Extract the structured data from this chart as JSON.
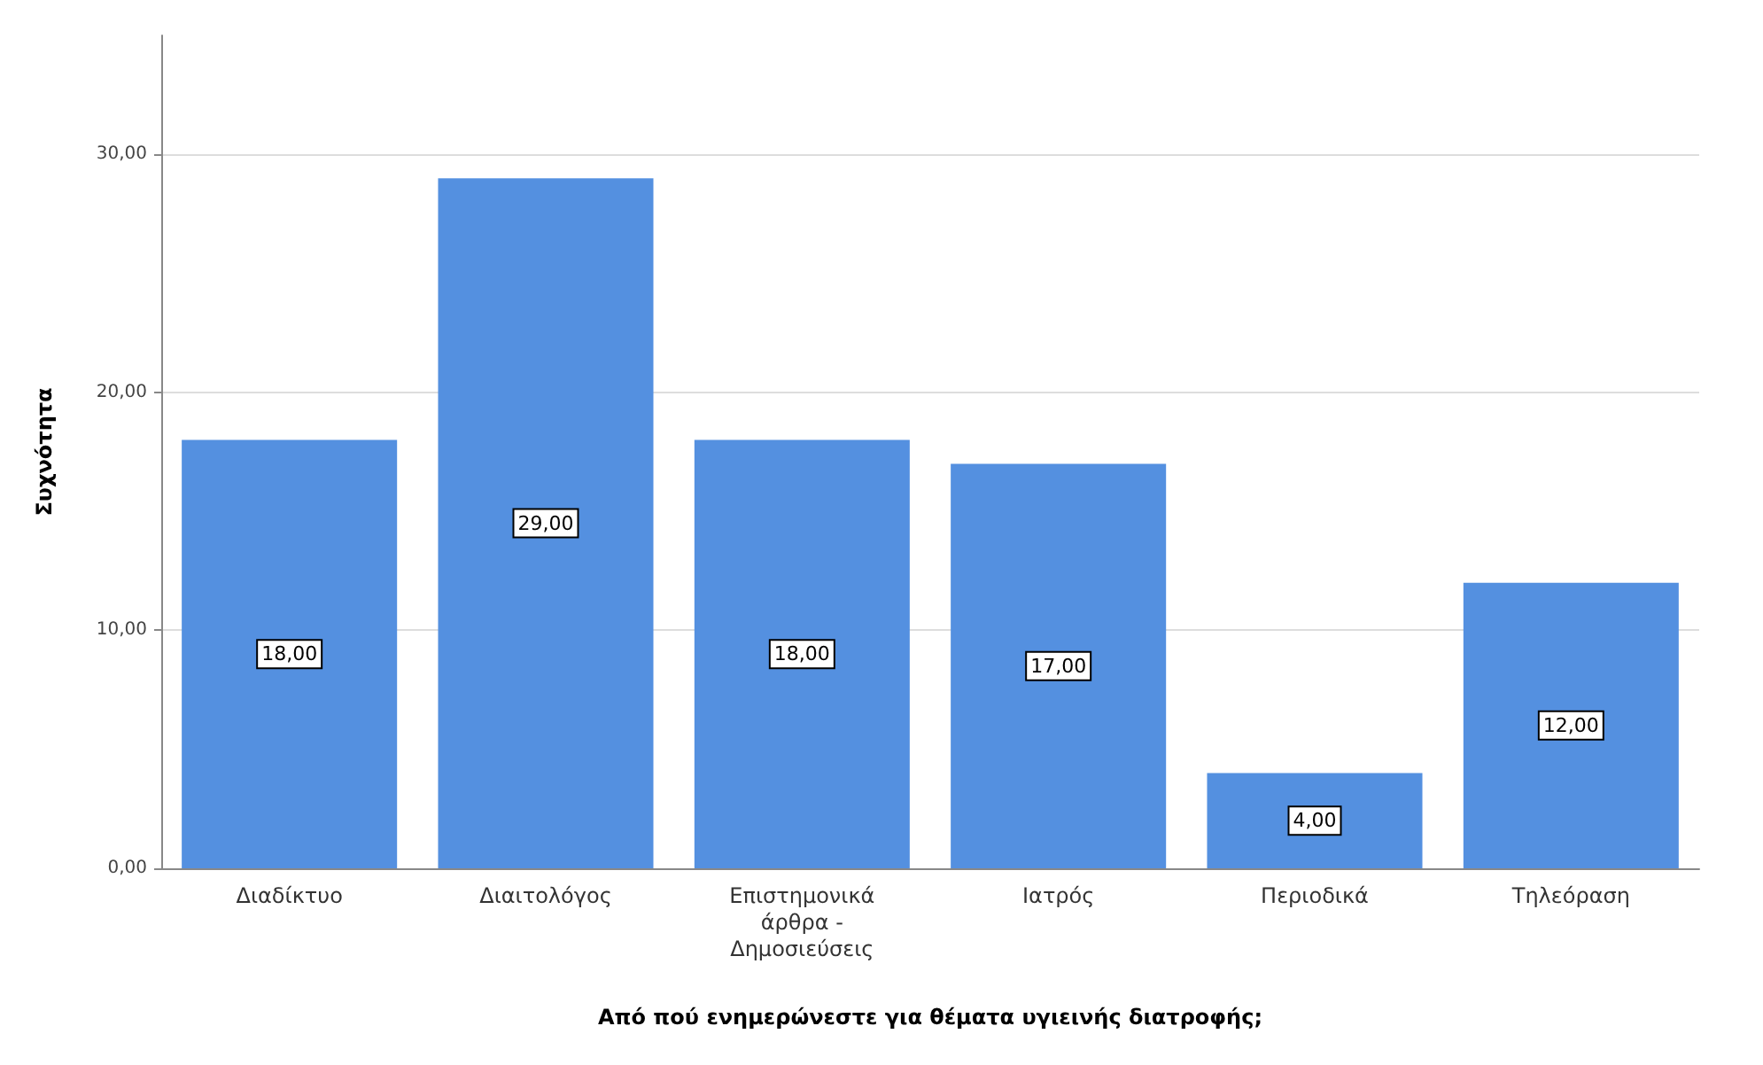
{
  "chart_data": {
    "type": "bar",
    "xlabel": "Από πού ενημερώνεστε για θέματα υγιεινής διατροφής;",
    "ylabel": "Συχνότητα",
    "categories": [
      "Διαδίκτυο",
      "Διαιτολόγος",
      "Επιστημονικά άρθρα - Δημοσιεύσεις",
      "Ιατρός",
      "Περιοδικά",
      "Τηλεόραση"
    ],
    "values": [
      18,
      29,
      18,
      17,
      4,
      12
    ],
    "value_labels": [
      "18,00",
      "29,00",
      "18,00",
      "17,00",
      "4,00",
      "12,00"
    ],
    "color": "#5490e0",
    "ylim": [
      0,
      35
    ],
    "yticks": [
      {
        "value": 0,
        "label": "0,00"
      },
      {
        "value": 10,
        "label": "10,00"
      },
      {
        "value": 20,
        "label": "20,00"
      },
      {
        "value": 30,
        "label": "30,00"
      }
    ],
    "grid": "y"
  }
}
